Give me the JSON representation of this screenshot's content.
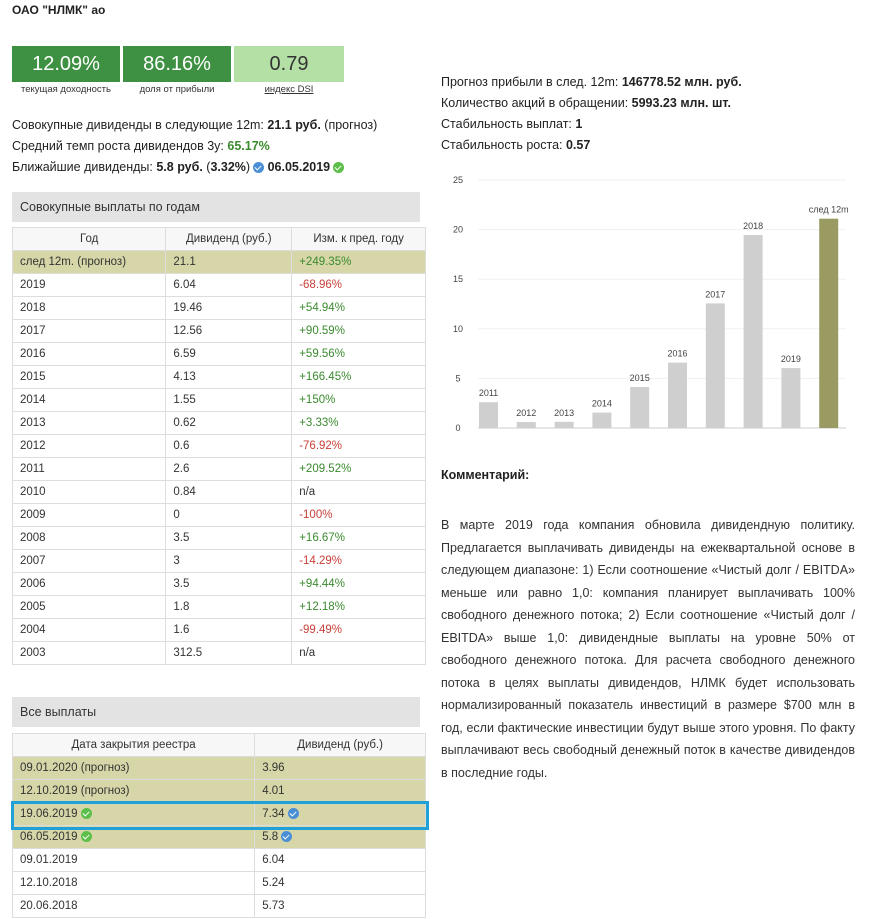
{
  "header": {
    "title": "ОАО \"НЛМК\" ао"
  },
  "kpis": [
    {
      "value": "12.09%",
      "label": "текущая доходность"
    },
    {
      "value": "86.16%",
      "label": "доля от прибыли"
    },
    {
      "value": "0.79",
      "label": "индекс DSI"
    }
  ],
  "summary_left": [
    [
      "Совокупные дивиденды в следующие 12m: ",
      "21.1 руб.",
      " (прогноз)"
    ],
    [
      "Средний темп роста дивидендов 3у: ",
      "65.17%"
    ],
    [
      "Ближайшие дивиденды: ",
      "5.8 руб.",
      " (",
      "3.32%",
      ")",
      "06.05.2019"
    ]
  ],
  "summary_right": [
    [
      "Прогноз прибыли в след. 12m: ",
      "146778.52 млн. руб."
    ],
    [
      "Количество акций в обращении: ",
      "5993.23 млн. шт."
    ],
    [
      "Стабильность выплат: ",
      "1"
    ],
    [
      "Стабильность роста: ",
      "0.57"
    ]
  ],
  "table_years": {
    "title": "Совокупные выплаты по годам",
    "columns": [
      "Год",
      "Дивиденд (руб.)",
      "Изм. к пред. году"
    ],
    "rows": [
      [
        "след 12m. (прогноз)",
        "21.1",
        "+249.35%"
      ],
      [
        "2019",
        "6.04",
        "-68.96%"
      ],
      [
        "2018",
        "19.46",
        "+54.94%"
      ],
      [
        "2017",
        "12.56",
        "+90.59%"
      ],
      [
        "2016",
        "6.59",
        "+59.56%"
      ],
      [
        "2015",
        "4.13",
        "+166.45%"
      ],
      [
        "2014",
        "1.55",
        "+150%"
      ],
      [
        "2013",
        "0.62",
        "+3.33%"
      ],
      [
        "2012",
        "0.6",
        "-76.92%"
      ],
      [
        "2011",
        "2.6",
        "+209.52%"
      ],
      [
        "2010",
        "0.84",
        "n/a"
      ],
      [
        "2009",
        "0",
        "-100%"
      ],
      [
        "2008",
        "3.5",
        "+16.67%"
      ],
      [
        "2007",
        "3",
        "-14.29%"
      ],
      [
        "2006",
        "3.5",
        "+94.44%"
      ],
      [
        "2005",
        "1.8",
        "+12.18%"
      ],
      [
        "2004",
        "1.6",
        "-99.49%"
      ],
      [
        "2003",
        "312.5",
        "n/a"
      ]
    ]
  },
  "table_all": {
    "title": "Все выплаты",
    "columns": [
      "Дата закрытия реестра",
      "Дивиденд (руб.)"
    ],
    "rows": [
      [
        "09.01.2020 (прогноз)",
        "3.96"
      ],
      [
        "12.10.2019 (прогноз)",
        "4.01"
      ],
      [
        "19.06.2019",
        "7.34"
      ],
      [
        "06.05.2019",
        "5.8"
      ],
      [
        "09.01.2019",
        "6.04"
      ],
      [
        "12.10.2018",
        "5.24"
      ],
      [
        "20.06.2018",
        "5.73"
      ]
    ]
  },
  "chart_data": {
    "type": "bar",
    "categories": [
      "2011",
      "2012",
      "2013",
      "2014",
      "2015",
      "2016",
      "2017",
      "2018",
      "2019",
      "след 12m"
    ],
    "values": [
      2.6,
      0.6,
      0.62,
      1.55,
      4.13,
      6.59,
      12.56,
      19.46,
      6.04,
      21.1
    ],
    "colors": [
      "#cfcfcf",
      "#cfcfcf",
      "#cfcfcf",
      "#cfcfcf",
      "#cfcfcf",
      "#cfcfcf",
      "#cfcfcf",
      "#cfcfcf",
      "#cfcfcf",
      "#9a9a63"
    ],
    "ylim": [
      0,
      25
    ],
    "yticks": [
      0,
      5,
      10,
      15,
      20,
      25
    ],
    "grid": true
  },
  "comment": {
    "title": "Комментарий:",
    "text": "В марте 2019 года компания обновила дивидендную политику. Предлагается выплачивать дивиденды на ежеквартальной основе в следующем диапазоне: 1) Если соотношение «Чистый долг / EBITDA» меньше или равно 1,0: компания планирует выплачивать 100% свободного денежного потока; 2) Если соотношение «Чистый долг / EBITDA» выше 1,0: дивидендные выплаты на уровне 50% от свободного денежного потока. Для расчета свободного денежного потока в целях выплаты дивидендов, НЛМК будет использовать нормализированный показатель инвестиций в размере $700 млн в год, если фактические инвестиции будут выше этого уровня. По факту выплачивают весь свободный денежный поток в качестве дивидендов в последние годы."
  }
}
